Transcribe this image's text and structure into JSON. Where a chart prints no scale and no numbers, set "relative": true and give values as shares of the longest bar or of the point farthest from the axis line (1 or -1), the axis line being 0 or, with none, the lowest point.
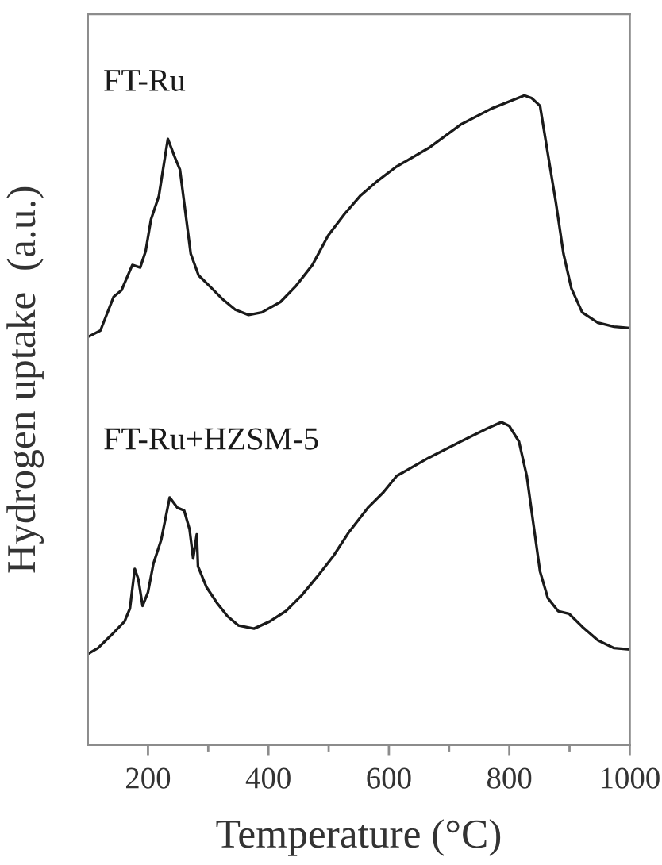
{
  "chart_data": {
    "type": "line",
    "xlabel": "Temperature (°C)",
    "ylabel": "Hydrogen uptake  (a.u.)",
    "relative": true,
    "tick_labels": "x",
    "marker": "none",
    "line_style": "solid",
    "xlim": [
      100,
      1000
    ],
    "xticks": [
      200,
      {
        "value": 300,
        "label": null
      },
      400,
      {
        "value": 500,
        "label": null
      },
      600,
      {
        "value": 700,
        "label": null
      },
      800,
      {
        "value": 900,
        "label": null
      },
      1000
    ],
    "series": [
      {
        "name": "FT-Ru",
        "color": "#1a1a1a",
        "x": [
          102,
          121,
          143,
          156,
          174,
          187,
          196,
          205,
          218,
          233,
          244,
          253,
          262,
          271,
          284,
          306,
          323,
          345,
          367,
          389,
          420,
          446,
          473,
          499,
          526,
          552,
          578,
          612,
          666,
          719,
          771,
          825,
          837,
          851,
          864,
          877,
          890,
          903,
          921,
          947,
          974,
          998
        ],
        "values": [
          0.629,
          0.638,
          0.69,
          0.7,
          0.739,
          0.735,
          0.76,
          0.809,
          0.845,
          0.933,
          0.906,
          0.886,
          0.821,
          0.756,
          0.723,
          0.703,
          0.687,
          0.67,
          0.662,
          0.666,
          0.682,
          0.707,
          0.739,
          0.784,
          0.817,
          0.845,
          0.866,
          0.89,
          0.919,
          0.955,
          0.98,
          1.0,
          0.996,
          0.984,
          0.91,
          0.837,
          0.756,
          0.703,
          0.666,
          0.65,
          0.644,
          0.642
        ]
      },
      {
        "name": "FT-Ru+HZSM-5",
        "color": "#1a1a1a",
        "x": [
          102,
          117,
          139,
          161,
          170,
          178,
          184,
          191,
          200,
          209,
          222,
          236,
          249,
          260,
          269,
          275,
          281,
          283,
          297,
          315,
          332,
          350,
          376,
          402,
          429,
          455,
          481,
          508,
          534,
          565,
          591,
          613,
          666,
          719,
          763,
          787,
          800,
          816,
          829,
          840,
          851,
          864,
          881,
          899,
          921,
          947,
          974,
          998
        ],
        "values": [
          0.141,
          0.149,
          0.169,
          0.19,
          0.21,
          0.271,
          0.255,
          0.214,
          0.235,
          0.279,
          0.316,
          0.381,
          0.365,
          0.361,
          0.332,
          0.287,
          0.324,
          0.275,
          0.243,
          0.218,
          0.198,
          0.184,
          0.179,
          0.19,
          0.206,
          0.23,
          0.259,
          0.291,
          0.328,
          0.365,
          0.389,
          0.414,
          0.442,
          0.467,
          0.487,
          0.497,
          0.491,
          0.467,
          0.414,
          0.34,
          0.267,
          0.226,
          0.206,
          0.202,
          0.182,
          0.161,
          0.149,
          0.147
        ]
      }
    ]
  }
}
